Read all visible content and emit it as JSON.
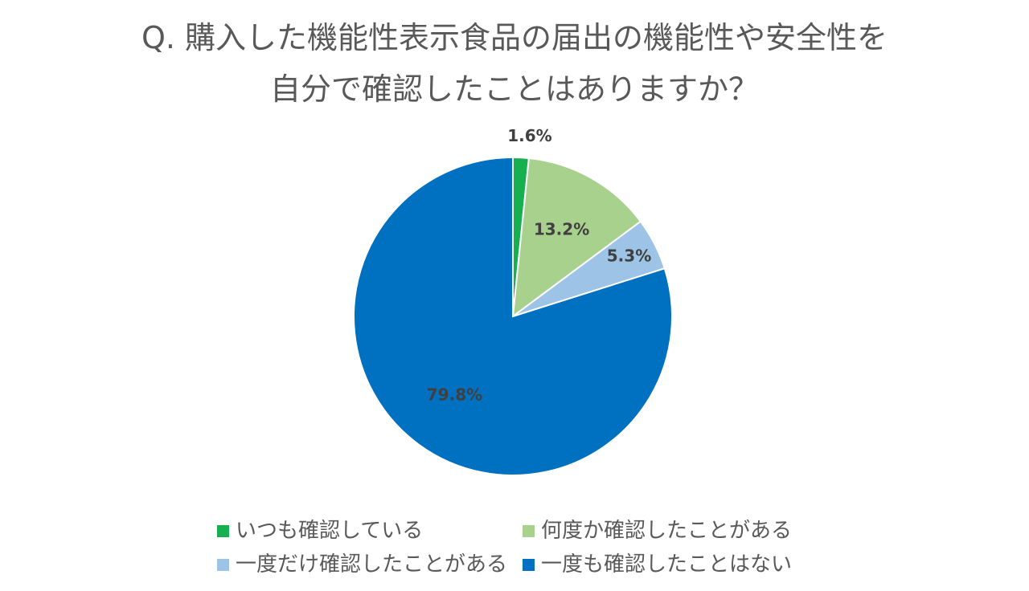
{
  "chart_data": {
    "type": "pie",
    "title_lines": [
      "Q. 購入した機能性表示食品の届出の機能性や安全性を",
      "自分で確認したことはありますか？"
    ],
    "start_angle_deg": 0,
    "direction": "clockwise",
    "slices": [
      {
        "label": "いつも確認している",
        "value": 1.6,
        "display": "1.6%",
        "color": "#17b050"
      },
      {
        "label": "何度か確認したことがある",
        "value": 13.2,
        "display": "13.2%",
        "color": "#a9d18e"
      },
      {
        "label": "一度だけ確認したことがある",
        "value": 5.3,
        "display": "5.3%",
        "color": "#9dc3e6"
      },
      {
        "label": "一度も確認したことはない",
        "value": 79.8,
        "display": "79.8%",
        "color": "#0070c0"
      }
    ],
    "legend_position": "bottom",
    "data_label_color": "#404040"
  }
}
